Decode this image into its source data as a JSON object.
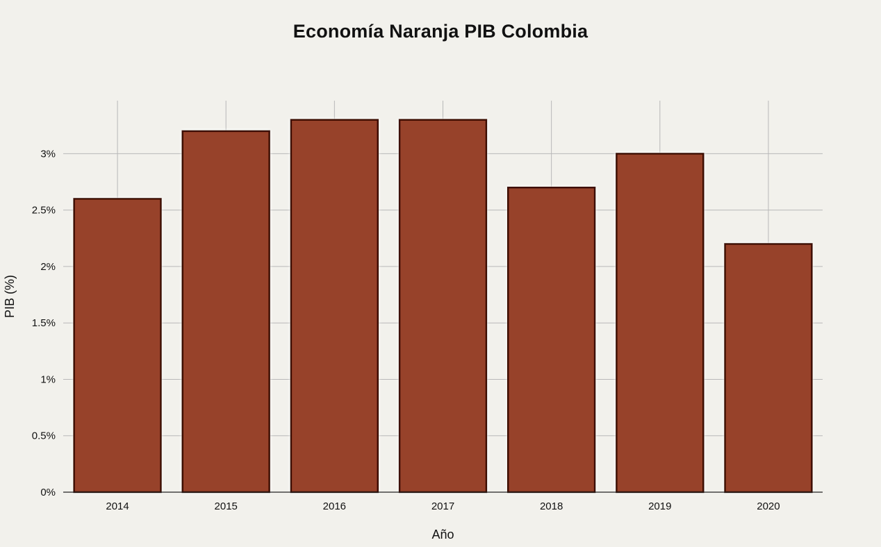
{
  "chart_data": {
    "type": "bar",
    "title": "Economía Naranja PIB Colombia",
    "xlabel": "Año",
    "ylabel": "PIB (%)",
    "categories": [
      "2014",
      "2015",
      "2016",
      "2017",
      "2018",
      "2019",
      "2020"
    ],
    "values": [
      2.6,
      3.2,
      3.3,
      3.3,
      2.7,
      3.0,
      2.2
    ],
    "ylim": [
      0,
      3.47
    ],
    "yticks": [
      0,
      0.5,
      1,
      1.5,
      2,
      2.5,
      3
    ],
    "ytick_labels": [
      "0%",
      "0.5%",
      "1%",
      "1.5%",
      "2%",
      "2.5%",
      "3%"
    ],
    "grid": true,
    "bar_color": "#97432a",
    "bar_edge_color": "#3d0a06",
    "background_color": "#f2f1ec",
    "grid_color": "#b8b8b8"
  }
}
